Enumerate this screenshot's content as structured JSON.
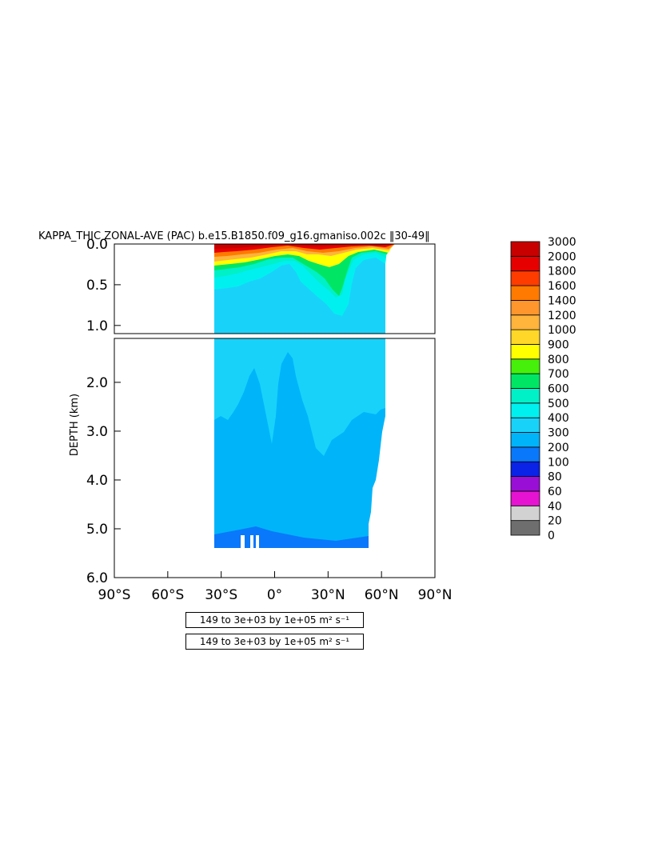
{
  "chart_data": {
    "type": "heatmap",
    "title": "KAPPA_THIC ZONAL-AVE (PAC) b.e15.B1850.f09_g16.gmaniso.002c",
    "title_suffix": " 30-49 ",
    "ylabel": "DEPTH (km)",
    "xlabel": "",
    "xlim": [
      -90,
      90
    ],
    "ylim": [
      0,
      6
    ],
    "x_ticks": [
      {
        "value": -90,
        "label": "90°S"
      },
      {
        "value": -60,
        "label": "60°S"
      },
      {
        "value": -30,
        "label": "30°S"
      },
      {
        "value": 0,
        "label": "0°"
      },
      {
        "value": 30,
        "label": "30°N"
      },
      {
        "value": 60,
        "label": "60°N"
      },
      {
        "value": 90,
        "label": "90°N"
      }
    ],
    "upper_panel": {
      "depth_range": [
        0,
        1.1
      ],
      "y_ticks": [
        {
          "value": 0,
          "label": "0.0"
        },
        {
          "value": 0.5,
          "label": "0.5"
        },
        {
          "value": 1.0,
          "label": "1.0"
        }
      ]
    },
    "lower_panel": {
      "depth_range": [
        1.1,
        6.0
      ],
      "y_ticks": [
        {
          "value": 2,
          "label": "2.0"
        },
        {
          "value": 3,
          "label": "3.0"
        },
        {
          "value": 4,
          "label": "4.0"
        },
        {
          "value": 5,
          "label": "5.0"
        },
        {
          "value": 6,
          "label": "6.0"
        }
      ]
    },
    "colorbar": {
      "levels": [
        "0",
        "20",
        "40",
        "60",
        "80",
        "100",
        "200",
        "300",
        "400",
        "500",
        "600",
        "700",
        "800",
        "900",
        "1000",
        "1200",
        "1400",
        "1600",
        "1800",
        "2000",
        "3000"
      ],
      "colors": [
        "#6e6e6e",
        "#d2d2d2",
        "#e614d2",
        "#9a0fd6",
        "#0a23e6",
        "#0a78fa",
        "#00b4fa",
        "#19d2fa",
        "#00f0f0",
        "#00f0c8",
        "#00e664",
        "#46f00a",
        "#ffff00",
        "#ffd728",
        "#ffb43c",
        "#ff962d",
        "#ff7a00",
        "#ff3c00",
        "#e60000",
        "#c80000"
      ]
    },
    "regions": [
      {
        "level_index": 6,
        "description_value": "200-300",
        "lat_range": [
          -33,
          53
        ],
        "depth_range": [
          2.6,
          5.35
        ]
      },
      {
        "level_index": 7,
        "description_value": "300-400",
        "lat_range": [
          -33,
          62
        ],
        "depth_range": [
          0.35,
          2.6
        ]
      },
      {
        "level_index": 8,
        "description_value": "400-500",
        "lat_range": [
          -33,
          62
        ],
        "depth_range": [
          0.2,
          0.7
        ]
      },
      {
        "level_index": 10,
        "description_value": "600-700",
        "lat_range": [
          20,
          42
        ],
        "depth_range": [
          0.1,
          0.6
        ]
      },
      {
        "level_index": 19,
        "description_value": "2000-3000",
        "lat_range": [
          -33,
          62
        ],
        "depth_range": [
          0,
          0.08
        ]
      }
    ]
  },
  "info_lines": [
    "149 to 3e+03 by 1e+05 m² s⁻¹",
    "149 to 3e+03 by 1e+05 m² s⁻¹"
  ]
}
